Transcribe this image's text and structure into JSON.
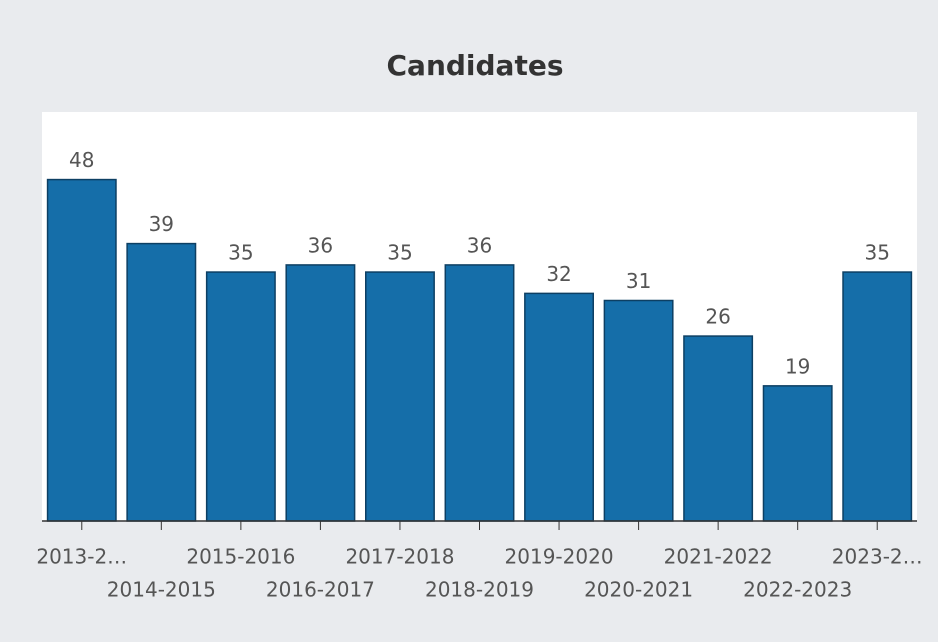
{
  "chart_data": {
    "type": "bar",
    "title": "Candidates",
    "categories": [
      "2013-2…",
      "2014-2015",
      "2015-2016",
      "2016-2017",
      "2017-2018",
      "2018-2019",
      "2019-2020",
      "2020-2021",
      "2021-2022",
      "2022-2023",
      "2023-2…"
    ],
    "values": [
      48,
      39,
      35,
      36,
      35,
      36,
      32,
      31,
      26,
      19,
      35
    ],
    "color": "#156ea9",
    "ylim": [
      0,
      57.5
    ]
  }
}
